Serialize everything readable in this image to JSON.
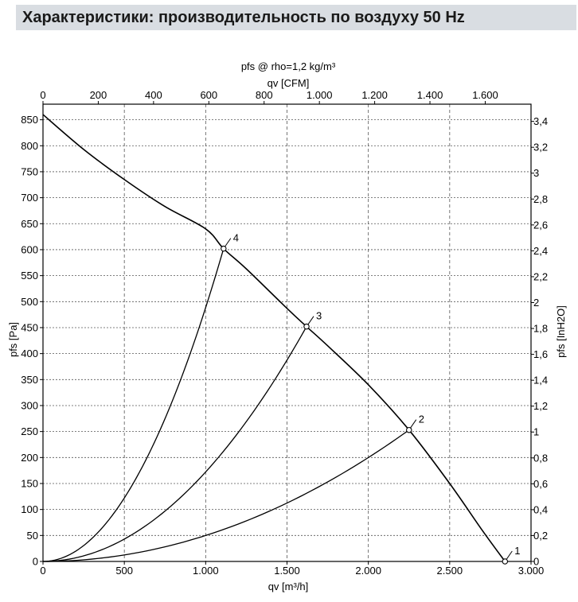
{
  "page": {
    "title": "Характеристики: производительность по воздуху 50 Hz"
  },
  "chart_data": {
    "type": "line",
    "title": "pfs @ rho=1,2 kg/m³",
    "xlabel": "qv [m³/h]",
    "ylabel": "pfs [Pa]",
    "x2label": "qv [CFM]",
    "y2label": "pfs [InH2O]",
    "xlim": [
      0,
      3000
    ],
    "ylim": [
      0,
      880
    ],
    "x2lim": [
      0,
      1765.7
    ],
    "y2lim": [
      0,
      3.533
    ],
    "x_ticks": [
      0,
      500,
      1000,
      1500,
      2000,
      2500,
      3000
    ],
    "x_tick_labels": [
      "0",
      "500",
      "1.000",
      "1.500",
      "2.000",
      "2.500",
      "3.000"
    ],
    "y_ticks": [
      0,
      50,
      100,
      150,
      200,
      250,
      300,
      350,
      400,
      450,
      500,
      550,
      600,
      650,
      700,
      750,
      800,
      850
    ],
    "y_tick_labels": [
      "0",
      "50",
      "100",
      "150",
      "200",
      "250",
      "300",
      "350",
      "400",
      "450",
      "500",
      "550",
      "600",
      "650",
      "700",
      "750",
      "800",
      "850"
    ],
    "x2_ticks": [
      0,
      200,
      400,
      600,
      800,
      1000,
      1200,
      1400,
      1600
    ],
    "x2_tick_labels": [
      "0",
      "200",
      "400",
      "600",
      "800",
      "1.000",
      "1.200",
      "1.400",
      "1.600"
    ],
    "y2_ticks": [
      0,
      0.2,
      0.4,
      0.6,
      0.8,
      1,
      1.2,
      1.4,
      1.6,
      1.8,
      2,
      2.2,
      2.4,
      2.6,
      2.8,
      3,
      3.2,
      3.4
    ],
    "y2_tick_labels": [
      "0",
      "0,2",
      "0,4",
      "0,6",
      "0,8",
      "1",
      "1,2",
      "1,4",
      "1,6",
      "1,8",
      "2",
      "2,2",
      "2,4",
      "2,6",
      "2,8",
      "3",
      "3,2",
      "3,4"
    ],
    "grid": true,
    "series": [
      {
        "values": [
          [
            0,
            860
          ],
          [
            250,
            793
          ],
          [
            500,
            735
          ],
          [
            750,
            683
          ],
          [
            1000,
            640
          ],
          [
            1110,
            602
          ],
          [
            1250,
            563
          ],
          [
            1500,
            487
          ],
          [
            1620,
            452
          ],
          [
            1750,
            415
          ],
          [
            2000,
            340
          ],
          [
            2250,
            253
          ],
          [
            2500,
            150
          ],
          [
            2700,
            60
          ],
          [
            2840,
            0
          ]
        ]
      }
    ],
    "system_curves": [
      {
        "label": "4",
        "qv": 1110,
        "pfs": 602
      },
      {
        "label": "3",
        "qv": 1620,
        "pfs": 452
      },
      {
        "label": "2",
        "qv": 2250,
        "pfs": 253
      }
    ],
    "operating_points": [
      {
        "label": "1",
        "qv": 2840,
        "pfs": 0
      },
      {
        "label": "2",
        "qv": 2250,
        "pfs": 253
      },
      {
        "label": "3",
        "qv": 1620,
        "pfs": 452
      },
      {
        "label": "4",
        "qv": 1110,
        "pfs": 602
      }
    ]
  }
}
